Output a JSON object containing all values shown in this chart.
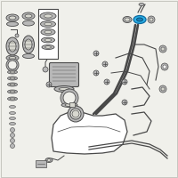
{
  "bg_color": "#f0f0eb",
  "border_color": "#c0c0b8",
  "highlight_color": "#2ab0e8",
  "highlight_dark": "#1880b8",
  "line_color": "#707070",
  "dark_color": "#484848",
  "mid_gray": "#909090",
  "light_gray": "#b8b8b8",
  "box_color": "#d8d8d0",
  "white": "#ffffff",
  "figsize": [
    2.0,
    2.0
  ],
  "dpi": 100
}
